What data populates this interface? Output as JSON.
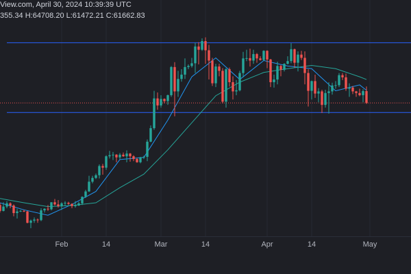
{
  "chart_data": {
    "type": "candlestick",
    "header": [
      "View.com, April 30, 2024 10:39:39 UTC",
      "355.34 H:64708.20 L:61472.21 C:61662.83"
    ],
    "x": [
      "2024-01-14",
      "2024-01-15",
      "2024-01-16",
      "2024-01-17",
      "2024-01-18",
      "2024-01-19",
      "2024-01-20",
      "2024-01-21",
      "2024-01-22",
      "2024-01-23",
      "2024-01-24",
      "2024-01-25",
      "2024-01-26",
      "2024-01-27",
      "2024-01-28",
      "2024-01-29",
      "2024-01-30",
      "2024-01-31",
      "2024-02-01",
      "2024-02-02",
      "2024-02-03",
      "2024-02-04",
      "2024-02-05",
      "2024-02-06",
      "2024-02-07",
      "2024-02-08",
      "2024-02-09",
      "2024-02-10",
      "2024-02-11",
      "2024-02-12",
      "2024-02-13",
      "2024-02-14",
      "2024-02-15",
      "2024-02-16",
      "2024-02-17",
      "2024-02-18",
      "2024-02-19",
      "2024-02-20",
      "2024-02-21",
      "2024-02-22",
      "2024-02-23",
      "2024-02-24",
      "2024-02-25",
      "2024-02-26",
      "2024-02-27",
      "2024-02-28",
      "2024-02-29",
      "2024-03-01",
      "2024-03-02",
      "2024-03-03",
      "2024-03-04",
      "2024-03-05",
      "2024-03-06",
      "2024-03-07",
      "2024-03-08",
      "2024-03-09",
      "2024-03-10",
      "2024-03-11",
      "2024-03-12",
      "2024-03-13",
      "2024-03-14",
      "2024-03-15",
      "2024-03-16",
      "2024-03-17",
      "2024-03-18",
      "2024-03-19",
      "2024-03-20",
      "2024-03-21",
      "2024-03-22",
      "2024-03-23",
      "2024-03-24",
      "2024-03-25",
      "2024-03-26",
      "2024-03-27",
      "2024-03-28",
      "2024-03-29",
      "2024-03-30",
      "2024-03-31",
      "2024-04-01",
      "2024-04-02",
      "2024-04-03",
      "2024-04-04",
      "2024-04-05",
      "2024-04-06",
      "2024-04-07",
      "2024-04-08",
      "2024-04-09",
      "2024-04-10",
      "2024-04-11",
      "2024-04-12",
      "2024-04-13",
      "2024-04-14",
      "2024-04-15",
      "2024-04-16",
      "2024-04-17",
      "2024-04-18",
      "2024-04-19",
      "2024-04-20",
      "2024-04-21",
      "2024-04-22",
      "2024-04-23",
      "2024-04-24",
      "2024-04-25",
      "2024-04-26",
      "2024-04-27",
      "2024-04-28",
      "2024-04-29",
      "2024-04-30"
    ],
    "open": [
      42800,
      41700,
      42500,
      43100,
      42700,
      41300,
      41600,
      41700,
      41600,
      39500,
      39900,
      40100,
      40000,
      41800,
      42100,
      42000,
      43300,
      42900,
      42600,
      43100,
      43200,
      43000,
      42600,
      42700,
      43100,
      44300,
      45300,
      47100,
      47800,
      48300,
      50000,
      49700,
      51800,
      52000,
      52100,
      51600,
      52100,
      51800,
      52300,
      51800,
      51300,
      50700,
      51600,
      51700,
      54500,
      57000,
      62500,
      61200,
      62400,
      62000,
      63100,
      68300,
      63800,
      66100,
      66900,
      68300,
      68500,
      69000,
      72100,
      71500,
      73100,
      71400,
      69500,
      65300,
      68400,
      67600,
      61900,
      67900,
      65500,
      63800,
      64000,
      67200,
      69900,
      69950,
      69500,
      70700,
      69900,
      69600,
      71300,
      69700,
      65500,
      66000,
      68500,
      67800,
      68900,
      69400,
      71600,
      69100,
      70600,
      70000,
      67200,
      63900,
      65700,
      63400,
      63800,
      61300,
      63500,
      63800,
      64900,
      64950,
      66800,
      66400,
      64300,
      64500,
      63800,
      63500,
      63100,
      63855.34
    ],
    "high": [
      43200,
      43300,
      43500,
      43300,
      42900,
      42100,
      41900,
      41900,
      41700,
      40100,
      40500,
      40300,
      42200,
      42200,
      42800,
      43300,
      43900,
      43700,
      43300,
      43500,
      43400,
      43100,
      43500,
      43400,
      44400,
      45600,
      48200,
      48200,
      48600,
      50300,
      50400,
      52000,
      52800,
      52600,
      52200,
      52400,
      52500,
      52900,
      52400,
      52000,
      51500,
      51700,
      51900,
      54900,
      57500,
      63900,
      63600,
      63100,
      62500,
      63200,
      68500,
      69200,
      67600,
      67900,
      69900,
      68800,
      70000,
      72800,
      72900,
      73600,
      73800,
      72400,
      70000,
      68900,
      68900,
      68100,
      68100,
      68200,
      66600,
      65900,
      67600,
      71100,
      71500,
      71700,
      71500,
      70900,
      70300,
      71400,
      71400,
      69800,
      66900,
      69300,
      68700,
      69000,
      70300,
      72700,
      71700,
      71200,
      71300,
      71200,
      67900,
      65800,
      66900,
      64400,
      64100,
      64100,
      65500,
      65400,
      65700,
      67200,
      67200,
      67100,
      65300,
      64800,
      63900,
      64300,
      64200,
      64708.2
    ],
    "low": [
      41400,
      41600,
      42200,
      42200,
      40700,
      40300,
      41500,
      41500,
      39400,
      38500,
      39500,
      39500,
      39800,
      41400,
      41700,
      41800,
      42700,
      42300,
      41900,
      42600,
      42800,
      42200,
      42300,
      42600,
      42800,
      44100,
      45200,
      46800,
      47600,
      47700,
      48400,
      49300,
      51400,
      51100,
      50700,
      51200,
      51700,
      50700,
      50800,
      50900,
      50600,
      50500,
      51300,
      50900,
      54400,
      56700,
      60400,
      60800,
      61600,
      61300,
      62800,
      59200,
      62800,
      65600,
      66100,
      67900,
      68200,
      67200,
      68800,
      71300,
      68900,
      66000,
      64800,
      64600,
      66600,
      61600,
      60800,
      64700,
      62300,
      63100,
      63800,
      66400,
      69400,
      68400,
      68900,
      69100,
      69500,
      69500,
      68100,
      64600,
      64500,
      65100,
      66600,
      67500,
      68800,
      69000,
      68200,
      67500,
      69600,
      65100,
      61000,
      62300,
      62600,
      61800,
      59800,
      60800,
      59700,
      63200,
      64300,
      64600,
      65900,
      63900,
      62800,
      63300,
      62800,
      62900,
      61800,
      61472.21
    ],
    "close": [
      41700,
      42500,
      43100,
      42700,
      41300,
      41600,
      41700,
      41600,
      39500,
      39900,
      40100,
      40000,
      41800,
      42100,
      42000,
      43300,
      42900,
      42600,
      43100,
      43200,
      43000,
      42600,
      42700,
      43100,
      44300,
      45300,
      47100,
      47800,
      48300,
      50000,
      49700,
      51800,
      52000,
      52100,
      51600,
      52100,
      51800,
      52300,
      51800,
      51300,
      50700,
      51600,
      51700,
      54500,
      57000,
      62500,
      61200,
      62400,
      62000,
      63100,
      68300,
      63800,
      66100,
      66900,
      68300,
      68500,
      69000,
      72100,
      71500,
      73100,
      71400,
      69500,
      65300,
      68400,
      67600,
      61900,
      67900,
      65500,
      63800,
      64000,
      67200,
      69900,
      69950,
      69500,
      70700,
      69900,
      69600,
      71300,
      69700,
      65500,
      66000,
      68500,
      67800,
      68900,
      69400,
      71600,
      69100,
      70600,
      70000,
      67200,
      63900,
      65700,
      63400,
      63800,
      61300,
      63500,
      63800,
      64900,
      64950,
      66800,
      66400,
      64300,
      64500,
      63800,
      63500,
      63100,
      63855.34,
      61662.83
    ],
    "up_color": "#26a69a",
    "down_color": "#ef5350",
    "lines": [
      {
        "color": "#2196f3",
        "x": [
          "2024-01-14",
          "2024-01-21",
          "2024-01-28",
          "2024-02-04",
          "2024-02-11",
          "2024-02-18",
          "2024-02-25",
          "2024-03-03",
          "2024-03-10",
          "2024-03-17",
          "2024-03-24",
          "2024-03-31",
          "2024-04-07",
          "2024-04-14",
          "2024-04-21",
          "2024-04-28",
          "2024-04-30"
        ],
        "values": [
          43200,
          41900,
          40900,
          42900,
          45300,
          51200,
          51600,
          58500,
          66500,
          70000,
          66000,
          69500,
          68500,
          68000,
          63900,
          65000,
          64000
        ]
      },
      {
        "color": "#26a69a",
        "x": [
          "2024-01-14",
          "2024-01-21",
          "2024-01-28",
          "2024-02-04",
          "2024-02-11",
          "2024-02-18",
          "2024-02-25",
          "2024-03-03",
          "2024-03-10",
          "2024-03-17",
          "2024-03-24",
          "2024-03-31",
          "2024-04-07",
          "2024-04-14",
          "2024-04-21",
          "2024-04-28",
          "2024-04-30"
        ],
        "values": [
          44000,
          43200,
          42500,
          42700,
          43200,
          46000,
          48500,
          53000,
          58000,
          63000,
          65500,
          67300,
          68000,
          68600,
          68000,
          66500,
          66000
        ]
      }
    ],
    "hlines": {
      "color": "#2962ff",
      "values": [
        72800,
        59900
      ]
    },
    "price_line_color": "#ef5350",
    "ylim": [
      37000,
      80700
    ],
    "xlim": [
      "2024-01-14",
      "2024-05-13"
    ],
    "xticks": [
      {
        "value": "2024-02-01",
        "label": "Feb"
      },
      {
        "value": "2024-02-14",
        "label": "14"
      },
      {
        "value": "2024-03-01",
        "label": "Mar"
      },
      {
        "value": "2024-03-14",
        "label": "14"
      },
      {
        "value": "2024-04-01",
        "label": "Apr"
      },
      {
        "value": "2024-04-14",
        "label": "14"
      },
      {
        "value": "2024-05-01",
        "label": "May"
      }
    ],
    "grid": true
  }
}
